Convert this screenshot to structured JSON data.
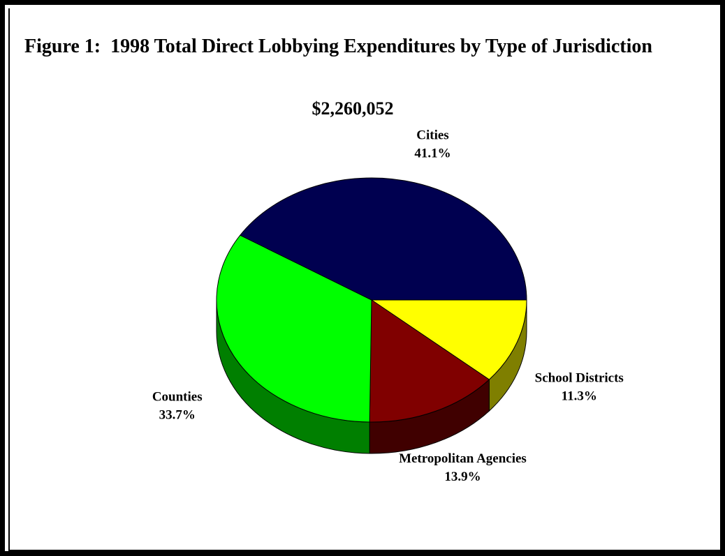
{
  "chart_data": {
    "type": "pie",
    "title": "Figure 1:  1998 Total Direct Lobbying Expenditures by Type of Jurisdiction",
    "subtitle": "$2,260,052",
    "categories": [
      "School Districts",
      "Metropolitan Agencies",
      "Counties",
      "Cities"
    ],
    "values": [
      11.3,
      13.9,
      33.7,
      41.1
    ],
    "value_labels": [
      "11.3%",
      "13.9%",
      "33.7%",
      "41.1%"
    ],
    "colors": [
      "#ffff00",
      "#800000",
      "#00ff00",
      "#000050"
    ],
    "three_d": true
  }
}
